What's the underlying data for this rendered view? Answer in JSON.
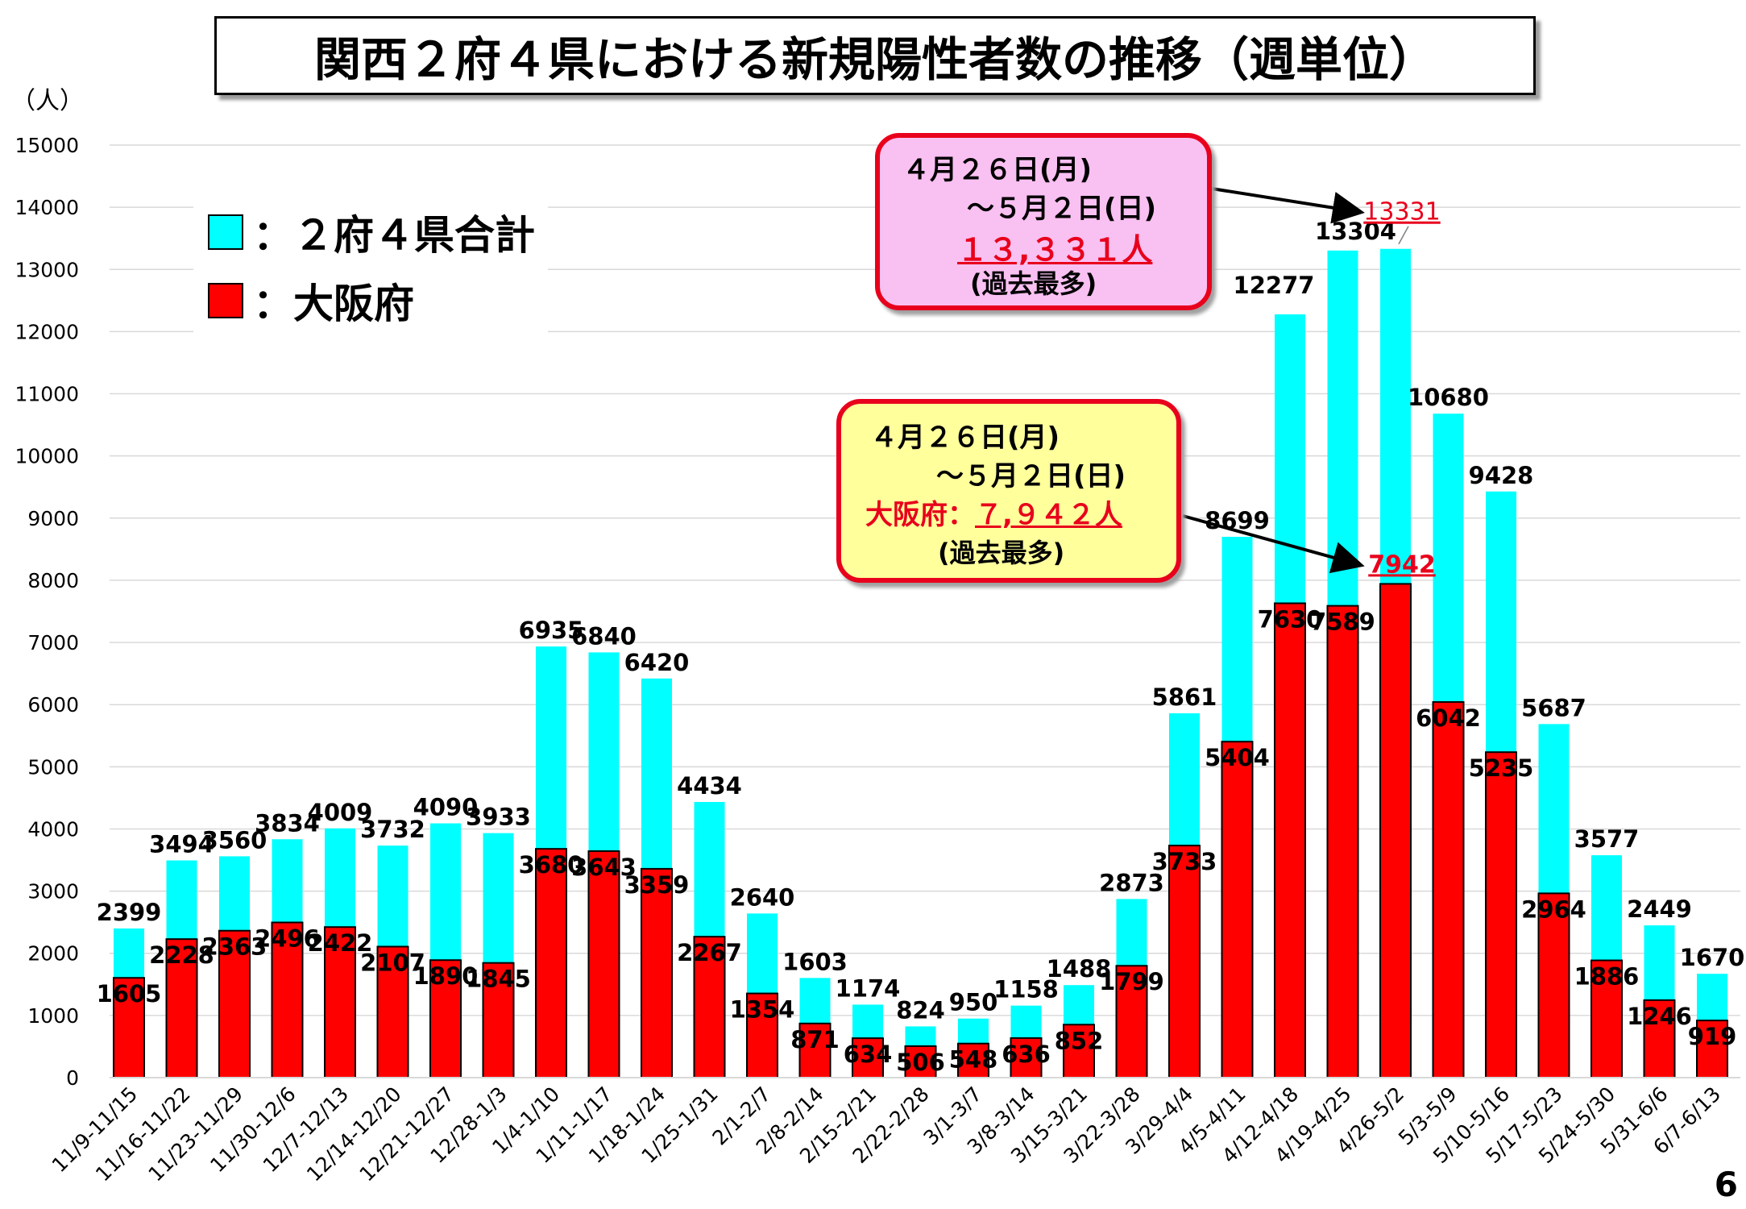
{
  "title": "関西２府４県における新規陽性者数の推移（週単位）",
  "unit_label": "（人）",
  "page_number": "6",
  "colors": {
    "total": "#00ffff",
    "osaka": "#ff0000",
    "callout_border": "#e8001c",
    "callout_a_bg": "#f9c0f2",
    "callout_b_bg": "#ffff9c"
  },
  "legend": {
    "total": "：２府４県合計",
    "osaka": "：大阪府"
  },
  "callout_total": {
    "line1": "４月２６日(月)",
    "line2": "～５月２日(日)",
    "line3": "１３,３３１人",
    "line4": "(過去最多)"
  },
  "callout_osaka": {
    "line1": "４月２６日(月)",
    "line2": "～５月２日(日)",
    "line3_prefix": "大阪府：",
    "line3_value": "７,９４２人",
    "line4": "(過去最多)"
  },
  "annotations": {
    "total_peak": "13331",
    "osaka_peak": "7942"
  },
  "chart_data": {
    "type": "bar",
    "stacked": false,
    "title": "関西２府４県における新規陽性者数の推移（週単位）",
    "ylabel": "（人）",
    "ylim": [
      0,
      15000
    ],
    "yticks": [
      0,
      1000,
      2000,
      3000,
      4000,
      5000,
      6000,
      7000,
      8000,
      9000,
      10000,
      11000,
      12000,
      13000,
      14000,
      15000
    ],
    "grid": true,
    "legend_position": "top-left",
    "categories": [
      "11/9-11/15",
      "11/16-11/22",
      "11/23-11/29",
      "11/30-12/6",
      "12/7-12/13",
      "12/14-12/20",
      "12/21-12/27",
      "12/28-1/3",
      "1/4-1/10",
      "1/11-1/17",
      "1/18-1/24",
      "1/25-1/31",
      "2/1-2/7",
      "2/8-2/14",
      "2/15-2/21",
      "2/22-2/28",
      "3/1-3/7",
      "3/8-3/14",
      "3/15-3/21",
      "3/22-3/28",
      "3/29-4/4",
      "4/5-4/11",
      "4/12-4/18",
      "4/19-4/25",
      "4/26-5/2",
      "5/3-5/9",
      "5/10-5/16",
      "5/17-5/23",
      "5/24-5/30",
      "5/31-6/6",
      "6/7-6/13"
    ],
    "series": [
      {
        "name": "２府４県合計",
        "color": "#00ffff",
        "values": [
          2399,
          3494,
          3560,
          3834,
          4009,
          3732,
          4090,
          3933,
          6935,
          6840,
          6420,
          4434,
          2640,
          1603,
          1174,
          824,
          950,
          1158,
          1488,
          2873,
          5861,
          8699,
          12277,
          13304,
          13331,
          10680,
          9428,
          5687,
          3577,
          2449,
          1670
        ]
      },
      {
        "name": "大阪府",
        "color": "#ff0000",
        "values": [
          1605,
          2228,
          2363,
          2496,
          2422,
          2107,
          1890,
          1845,
          3680,
          3643,
          3359,
          2267,
          1354,
          871,
          634,
          506,
          548,
          636,
          852,
          1799,
          3733,
          5404,
          7630,
          7589,
          7942,
          6042,
          5235,
          2964,
          1886,
          1246,
          919
        ]
      }
    ]
  }
}
